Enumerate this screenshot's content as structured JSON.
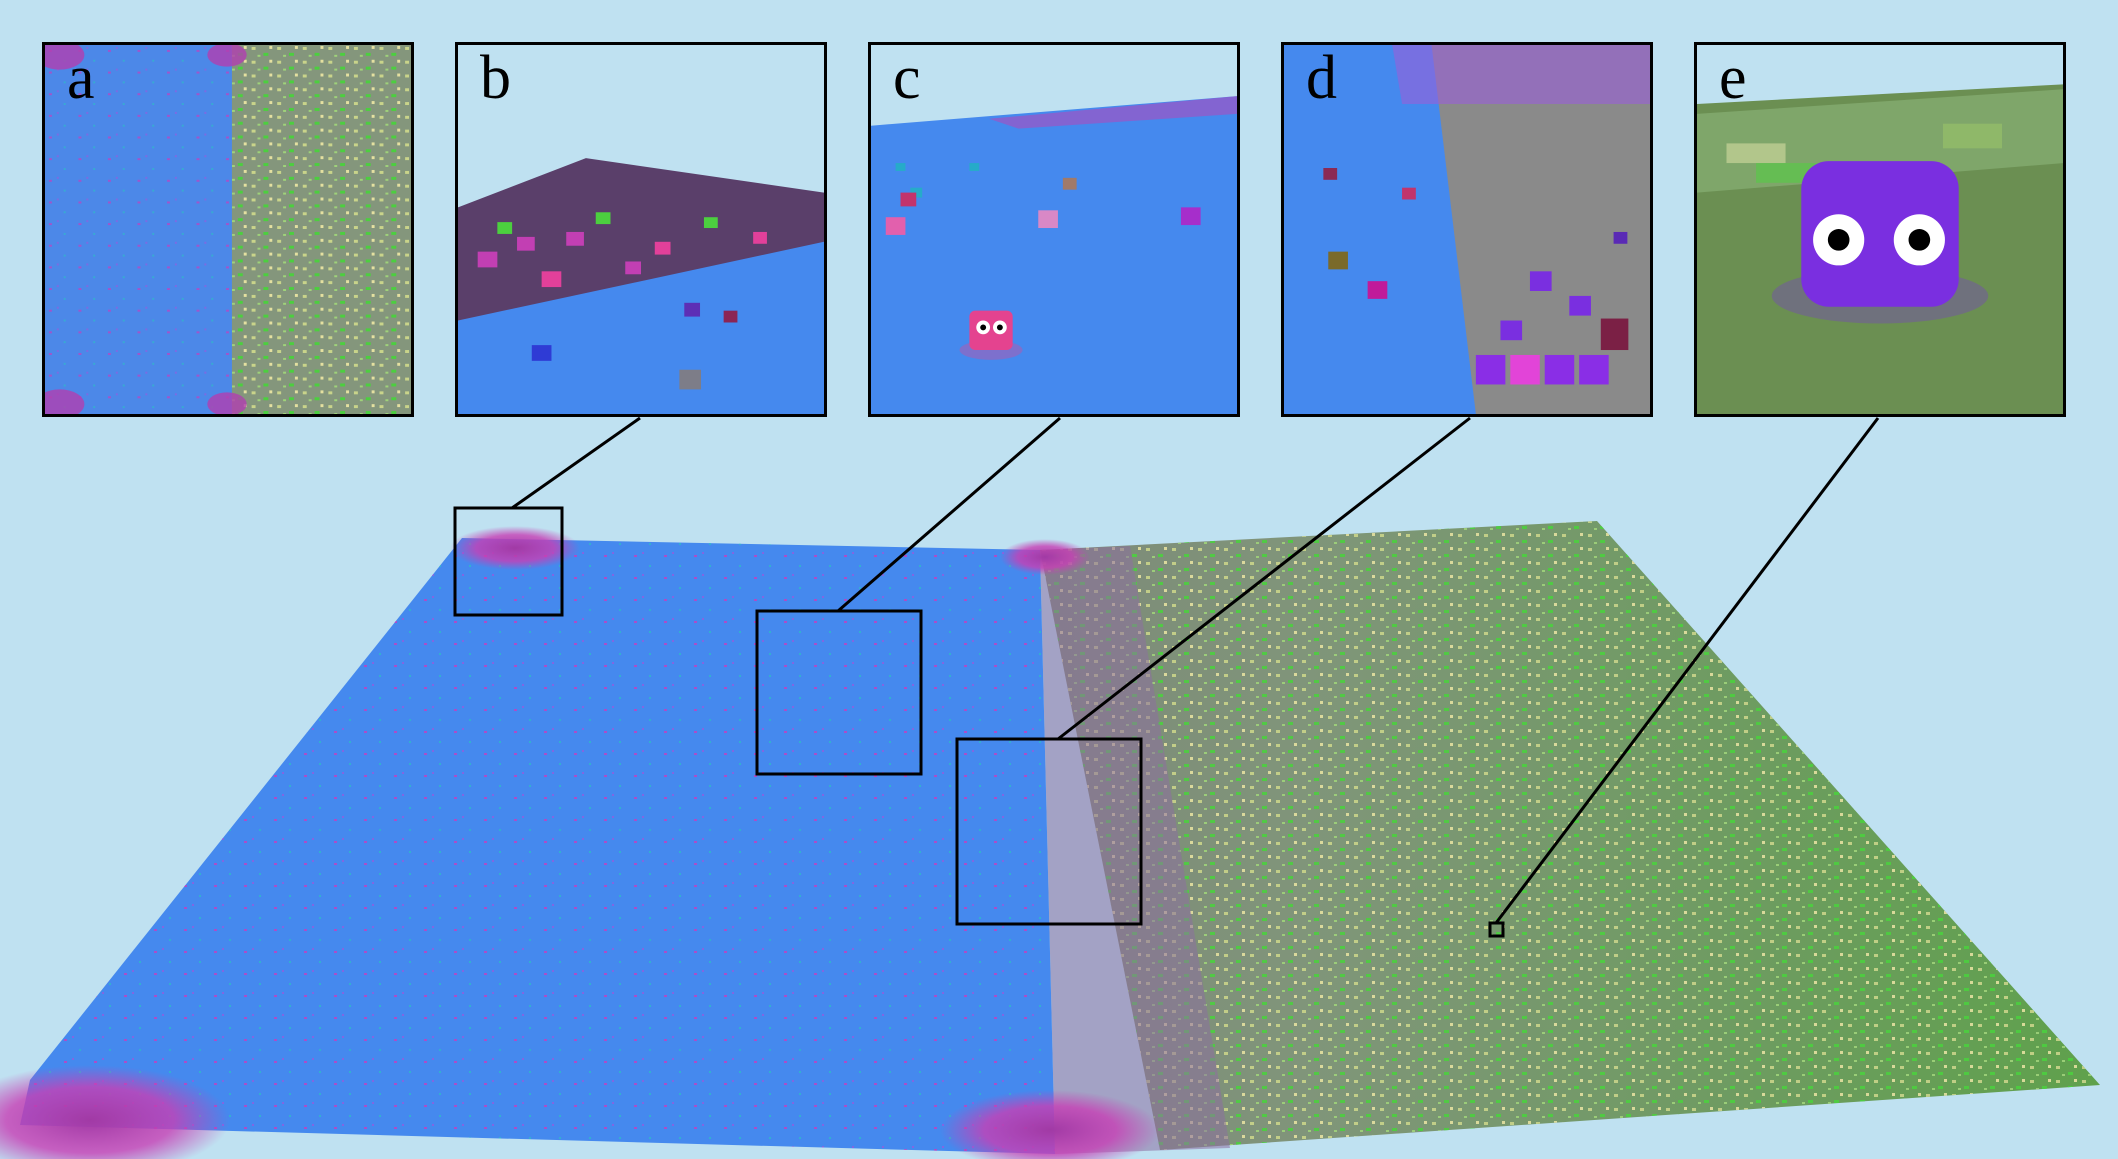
{
  "panels": [
    {
      "id": "a",
      "label": "a"
    },
    {
      "id": "b",
      "label": "b"
    },
    {
      "id": "c",
      "label": "c"
    },
    {
      "id": "d",
      "label": "d"
    },
    {
      "id": "e",
      "label": "e"
    }
  ],
  "colors": {
    "background": "#bfe1f1",
    "water_blue": "#4589ee",
    "grass_green": "#6b8f52",
    "gray_ground": "#8a8a8a",
    "bright_green": "#46c03c",
    "magenta_agents": "#c23fb3",
    "purple_agent": "#7a2fe0"
  }
}
